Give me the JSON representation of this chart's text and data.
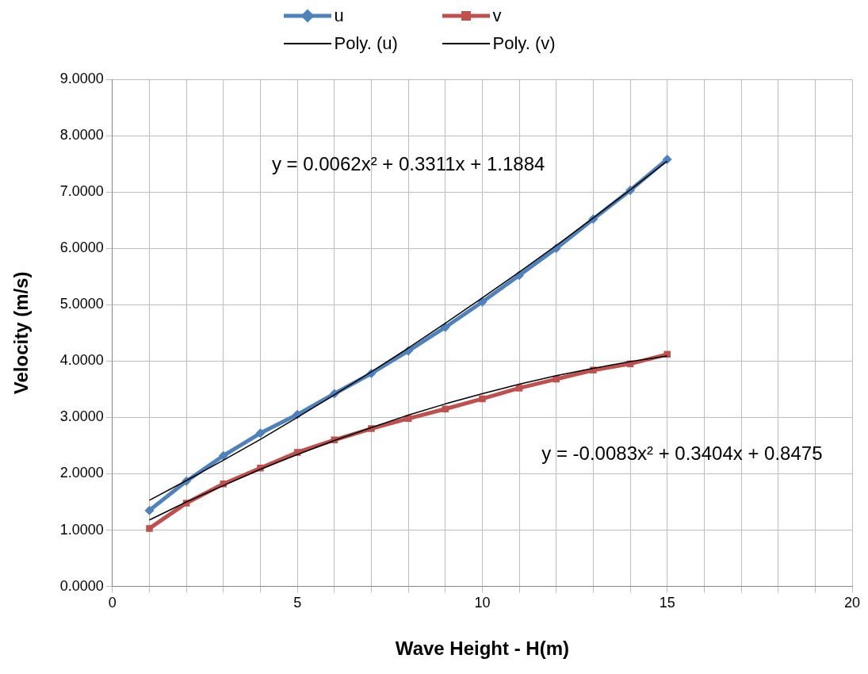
{
  "chart_data": {
    "type": "line",
    "xlabel": "Wave Height - H(m)",
    "ylabel": "Velocity (m/s)",
    "x": [
      1,
      2,
      3,
      4,
      5,
      6,
      7,
      8,
      9,
      10,
      11,
      12,
      13,
      14,
      15
    ],
    "series": [
      {
        "name": "u",
        "color": "#4f81bd",
        "marker": "diamond",
        "values": [
          1.35,
          1.87,
          2.32,
          2.72,
          3.05,
          3.42,
          3.78,
          4.18,
          4.6,
          5.05,
          5.52,
          6.0,
          6.52,
          7.03,
          7.58
        ]
      },
      {
        "name": "v",
        "color": "#c0504d",
        "marker": "square",
        "values": [
          1.03,
          1.48,
          1.82,
          2.1,
          2.38,
          2.6,
          2.8,
          2.98,
          3.15,
          3.33,
          3.52,
          3.68,
          3.84,
          3.95,
          4.12
        ]
      },
      {
        "name": "Poly. (u)",
        "color": "#000000",
        "marker": "none",
        "values": [
          1.53,
          1.88,
          2.24,
          2.61,
          3.0,
          3.4,
          3.81,
          4.23,
          4.67,
          5.12,
          5.58,
          6.05,
          6.54,
          7.04,
          7.55
        ]
      },
      {
        "name": "Poly. (v)",
        "color": "#000000",
        "marker": "none",
        "values": [
          1.18,
          1.5,
          1.79,
          2.08,
          2.34,
          2.59,
          2.82,
          3.04,
          3.24,
          3.42,
          3.59,
          3.74,
          3.87,
          3.99,
          4.09
        ]
      }
    ],
    "xlim": [
      0,
      20
    ],
    "xticks": [
      0,
      {
        "value": 1,
        "label": null
      },
      {
        "value": 2,
        "label": null
      },
      {
        "value": 3,
        "label": null
      },
      {
        "value": 4,
        "label": null
      },
      5,
      {
        "value": 6,
        "label": null
      },
      {
        "value": 7,
        "label": null
      },
      {
        "value": 8,
        "label": null
      },
      {
        "value": 9,
        "label": null
      },
      10,
      {
        "value": 11,
        "label": null
      },
      {
        "value": 12,
        "label": null
      },
      {
        "value": 13,
        "label": null
      },
      {
        "value": 14,
        "label": null
      },
      15,
      {
        "value": 16,
        "label": null
      },
      {
        "value": 17,
        "label": null
      },
      {
        "value": 18,
        "label": null
      },
      {
        "value": 19,
        "label": null
      },
      20
    ],
    "ylim": [
      0,
      9
    ],
    "yticks": [
      {
        "value": 0,
        "label": "0.0000"
      },
      {
        "value": 1,
        "label": "1.0000"
      },
      {
        "value": 2,
        "label": "2.0000"
      },
      {
        "value": 3,
        "label": "3.0000"
      },
      {
        "value": 4,
        "label": "4.0000"
      },
      {
        "value": 5,
        "label": "5.0000"
      },
      {
        "value": 6,
        "label": "6.0000"
      },
      {
        "value": 7,
        "label": "7.0000"
      },
      {
        "value": 8,
        "label": "8.0000"
      },
      {
        "value": 9,
        "label": "9.0000"
      }
    ],
    "grid": true,
    "legend": "top",
    "annotations": [
      "y = 0.0062x² + 0.3311x + 1.1884",
      "y = -0.0083x² + 0.3404x + 0.8475"
    ]
  }
}
